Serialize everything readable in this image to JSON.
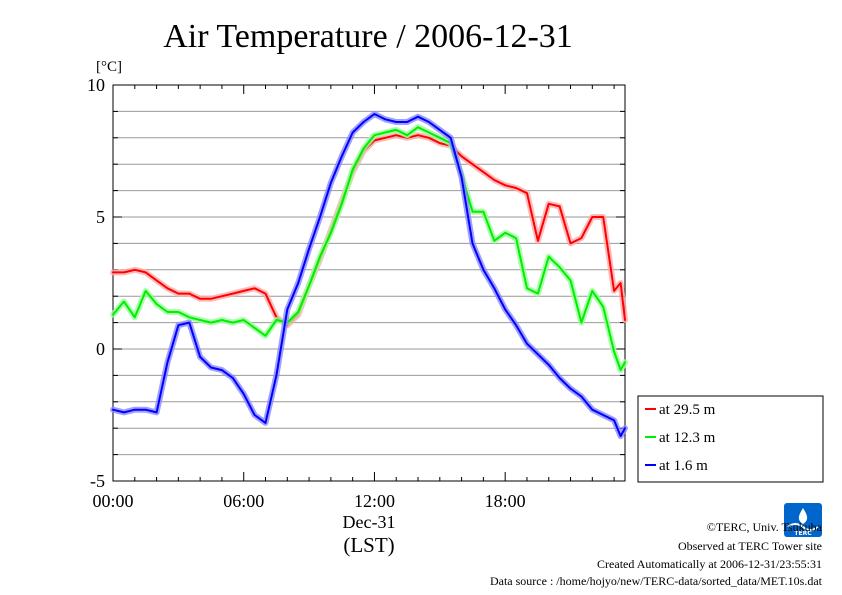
{
  "chart_data": {
    "type": "line",
    "title": "Air Temperature / 2006-12-31",
    "ylabel": "[°C]",
    "xlabel": "(LST)",
    "date_label": "Dec-31",
    "ylim": [
      -5,
      10
    ],
    "xlim": [
      0,
      23.5
    ],
    "yticks": [
      {
        "value": -5,
        "label": "-5"
      },
      {
        "value": 0,
        "label": "0"
      },
      {
        "value": 5,
        "label": "5"
      },
      {
        "value": 10,
        "label": "10"
      }
    ],
    "xticks": [
      {
        "value": 0,
        "label": "00:00"
      },
      {
        "value": 6,
        "label": "06:00"
      },
      {
        "value": 12,
        "label": "12:00"
      },
      {
        "value": 18,
        "label": "18:00"
      }
    ],
    "grid": "horizontal",
    "legend_position": "right",
    "x": [
      0,
      0.5,
      1,
      1.5,
      2,
      2.5,
      3,
      3.5,
      4,
      4.5,
      5,
      5.5,
      6,
      6.5,
      7,
      7.5,
      8,
      8.5,
      9,
      9.5,
      10,
      10.5,
      11,
      11.5,
      12,
      12.5,
      13,
      13.5,
      14,
      14.5,
      15,
      15.5,
      16,
      16.5,
      17,
      17.5,
      18,
      18.5,
      19,
      19.5,
      20,
      20.5,
      21,
      21.5,
      22,
      22.5,
      23,
      23.3,
      23.5
    ],
    "series": [
      {
        "name": "at 29.5 m",
        "color": "#ff0000",
        "values": [
          2.9,
          2.9,
          3.0,
          2.9,
          2.6,
          2.3,
          2.1,
          2.1,
          1.9,
          1.9,
          2.0,
          2.1,
          2.2,
          2.3,
          2.1,
          1.2,
          0.9,
          1.3,
          2.4,
          3.4,
          4.5,
          5.6,
          6.7,
          7.5,
          7.9,
          8.0,
          8.1,
          8.0,
          8.1,
          8.0,
          7.8,
          7.7,
          7.3,
          7.0,
          6.7,
          6.4,
          6.2,
          6.1,
          5.9,
          4.1,
          5.5,
          5.4,
          4.0,
          4.2,
          5.0,
          5.0,
          2.2,
          2.5,
          1.1
        ]
      },
      {
        "name": "at 12.3 m",
        "color": "#00ee00",
        "values": [
          1.3,
          1.8,
          1.2,
          2.2,
          1.7,
          1.4,
          1.4,
          1.2,
          1.1,
          1.0,
          1.1,
          1.0,
          1.1,
          0.8,
          0.5,
          1.1,
          1.0,
          1.4,
          2.4,
          3.5,
          4.4,
          5.5,
          6.8,
          7.6,
          8.1,
          8.2,
          8.3,
          8.1,
          8.4,
          8.2,
          8.0,
          7.8,
          6.6,
          5.2,
          5.2,
          4.1,
          4.4,
          4.2,
          2.3,
          2.1,
          3.5,
          3.1,
          2.6,
          1.0,
          2.2,
          1.6,
          -0.1,
          -0.8,
          -0.5
        ]
      },
      {
        "name": "at 1.6 m",
        "color": "#0000ff",
        "values": [
          -2.3,
          -2.4,
          -2.3,
          -2.3,
          -2.4,
          -0.5,
          0.9,
          1.0,
          -0.3,
          -0.7,
          -0.8,
          -1.1,
          -1.7,
          -2.5,
          -2.8,
          -1.0,
          1.5,
          2.5,
          3.8,
          5.0,
          6.3,
          7.3,
          8.2,
          8.6,
          8.9,
          8.7,
          8.6,
          8.6,
          8.8,
          8.6,
          8.3,
          8.0,
          6.5,
          4.0,
          3.0,
          2.3,
          1.5,
          0.9,
          0.2,
          -0.2,
          -0.6,
          -1.1,
          -1.5,
          -1.8,
          -2.3,
          -2.5,
          -2.7,
          -3.3,
          -3.0
        ]
      }
    ]
  },
  "footer": {
    "copyright": "©TERC, Univ. Tsukuba",
    "observed": "Observed at TERC Tower site",
    "created": "Created Automatically at 2006-12-31/23:55:31",
    "source": "Data source : /home/hojyo/new/TERC-data/sorted_data/MET.10s.dat"
  },
  "logo": {
    "text": "TERC",
    "color": "#0066cc"
  }
}
